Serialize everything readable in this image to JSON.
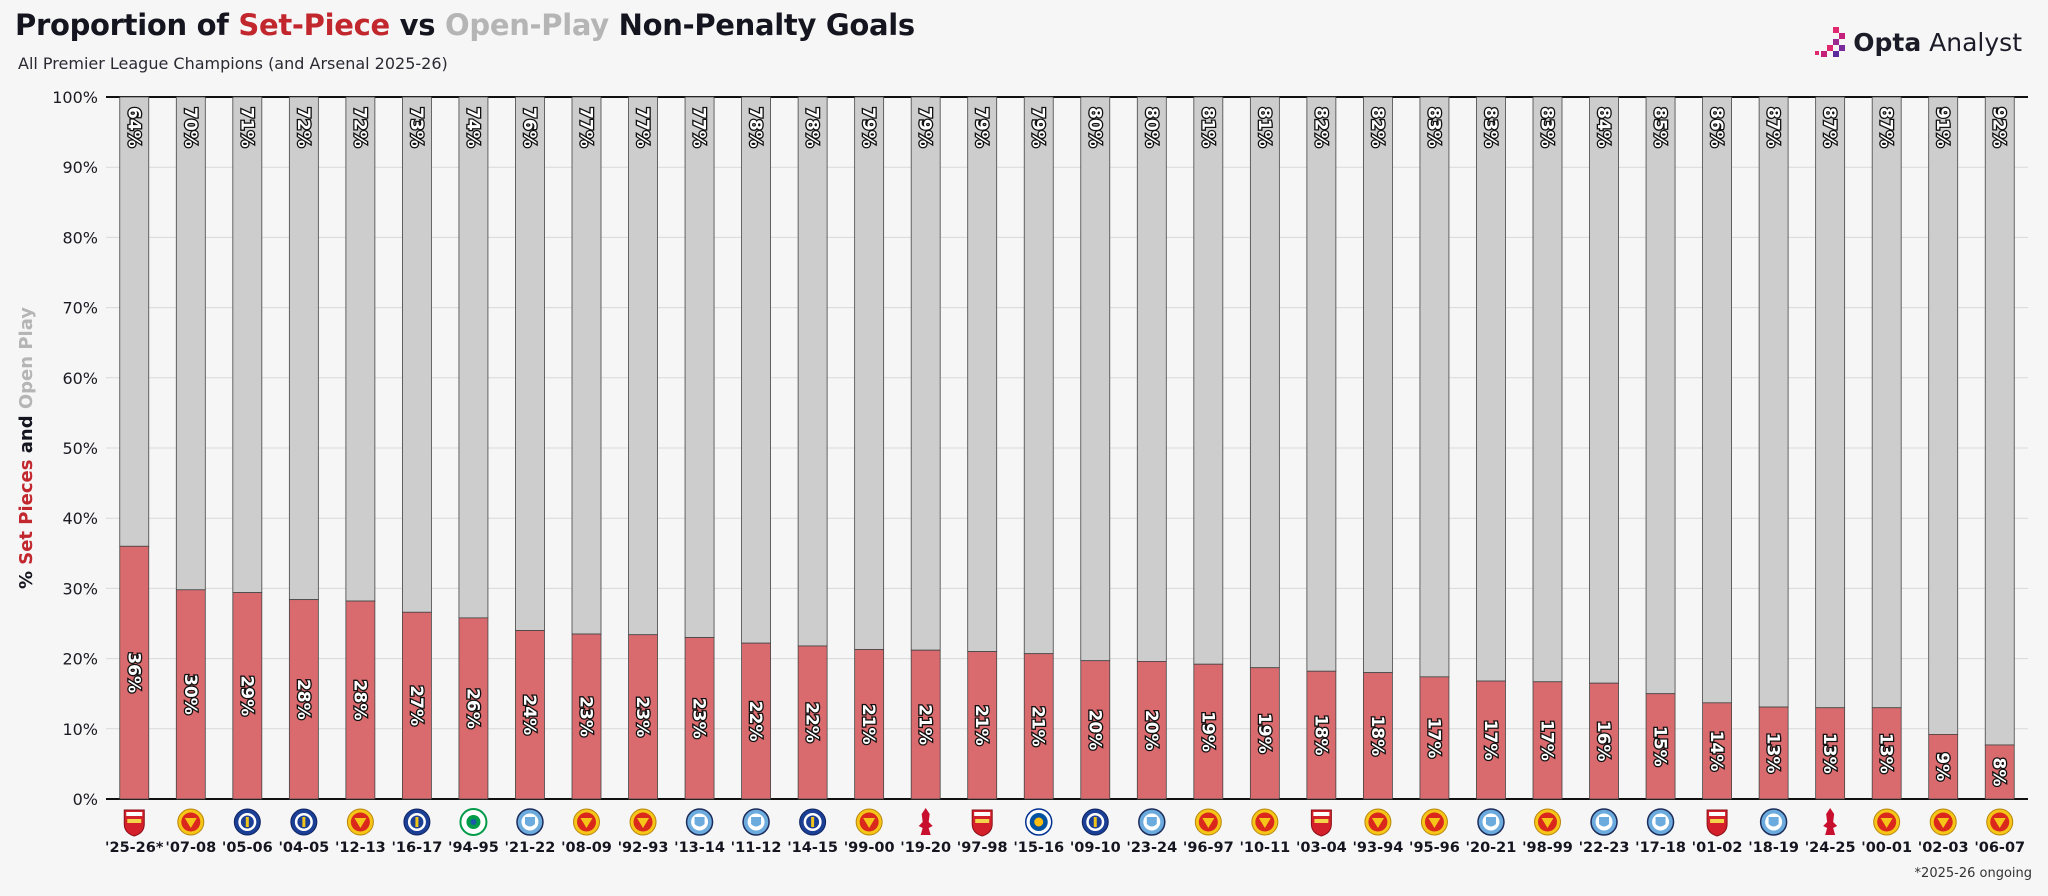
{
  "header": {
    "title_part1": "Proportion of ",
    "title_setpiece": "Set-Piece",
    "title_vs": " vs ",
    "title_openplay": "Open-Play",
    "title_part2": " Non-Penalty Goals",
    "subtitle": "All Premier League Champions (and Arsenal 2025-26)"
  },
  "brand": {
    "name_bold": "Opta",
    "name_rest": " Analyst"
  },
  "footnote": "*2025-26 ongoing",
  "colors": {
    "set_piece": "#d96b6e",
    "open_play": "#cdcdcd",
    "title_red": "#c1272d",
    "title_grey": "#b5b5b5",
    "grid": "#d9d9d9",
    "axis": "#111111"
  },
  "chart_data": {
    "type": "bar",
    "stacked": true,
    "ylabel_parts": [
      "% ",
      "Set Pieces",
      " and ",
      "Open Play"
    ],
    "ylim": [
      0,
      100
    ],
    "yticks": [
      "0%",
      "10%",
      "20%",
      "30%",
      "40%",
      "50%",
      "60%",
      "70%",
      "80%",
      "90%",
      "100%"
    ],
    "grid": true,
    "categories": [
      "'25-26*",
      "'07-08",
      "'05-06",
      "'04-05",
      "'12-13",
      "'16-17",
      "'94-95",
      "'21-22",
      "'08-09",
      "'92-93",
      "'13-14",
      "'11-12",
      "'14-15",
      "'99-00",
      "'19-20",
      "'97-98",
      "'15-16",
      "'09-10",
      "'23-24",
      "'96-97",
      "'10-11",
      "'03-04",
      "'93-94",
      "'95-96",
      "'20-21",
      "'98-99",
      "'22-23",
      "'17-18",
      "'01-02",
      "'18-19",
      "'24-25",
      "'00-01",
      "'02-03",
      "'06-07"
    ],
    "teams": [
      "arsenal",
      "man-utd",
      "chelsea",
      "chelsea",
      "man-utd",
      "chelsea",
      "blackburn",
      "man-city",
      "man-utd",
      "man-utd",
      "man-city",
      "man-city",
      "chelsea",
      "man-utd",
      "liverpool",
      "arsenal",
      "leicester",
      "chelsea",
      "man-city",
      "man-utd",
      "man-utd",
      "arsenal",
      "man-utd",
      "man-utd",
      "man-city",
      "man-utd",
      "man-city",
      "man-city",
      "arsenal",
      "man-city",
      "liverpool",
      "man-utd",
      "man-utd",
      "man-utd"
    ],
    "series": [
      {
        "name": "Set Pieces",
        "values": [
          36,
          29.8,
          29.4,
          28.4,
          28.2,
          26.6,
          25.8,
          24,
          23.5,
          23.4,
          23,
          22.2,
          21.8,
          21.3,
          21.2,
          21,
          20.7,
          19.7,
          19.6,
          19.2,
          18.7,
          18.2,
          18,
          17.4,
          16.8,
          16.7,
          16.5,
          15,
          13.7,
          13.1,
          13,
          13,
          9.2,
          7.7
        ],
        "labels": [
          "36%",
          "30%",
          "29%",
          "28%",
          "28%",
          "27%",
          "26%",
          "24%",
          "23%",
          "23%",
          "23%",
          "22%",
          "22%",
          "21%",
          "21%",
          "21%",
          "21%",
          "20%",
          "20%",
          "19%",
          "19%",
          "18%",
          "18%",
          "17%",
          "17%",
          "17%",
          "16%",
          "15%",
          "14%",
          "13%",
          "13%",
          "13%",
          "9%",
          "8%"
        ]
      },
      {
        "name": "Open Play",
        "values": [
          64,
          70.2,
          70.6,
          71.6,
          71.8,
          73.4,
          74.2,
          76,
          76.5,
          76.6,
          77,
          77.8,
          78.2,
          78.7,
          78.8,
          79,
          79.3,
          80.3,
          80.4,
          80.8,
          81.3,
          81.8,
          82,
          82.6,
          83.2,
          83.3,
          83.5,
          85,
          86.3,
          86.9,
          87,
          87,
          90.8,
          92.3
        ],
        "labels": [
          "64%",
          "70%",
          "71%",
          "72%",
          "72%",
          "73%",
          "74%",
          "76%",
          "77%",
          "77%",
          "77%",
          "78%",
          "78%",
          "79%",
          "79%",
          "79%",
          "79%",
          "80%",
          "80%",
          "81%",
          "81%",
          "82%",
          "82%",
          "83%",
          "83%",
          "83%",
          "84%",
          "85%",
          "86%",
          "87%",
          "87%",
          "87%",
          "91%",
          "92%"
        ]
      }
    ]
  }
}
